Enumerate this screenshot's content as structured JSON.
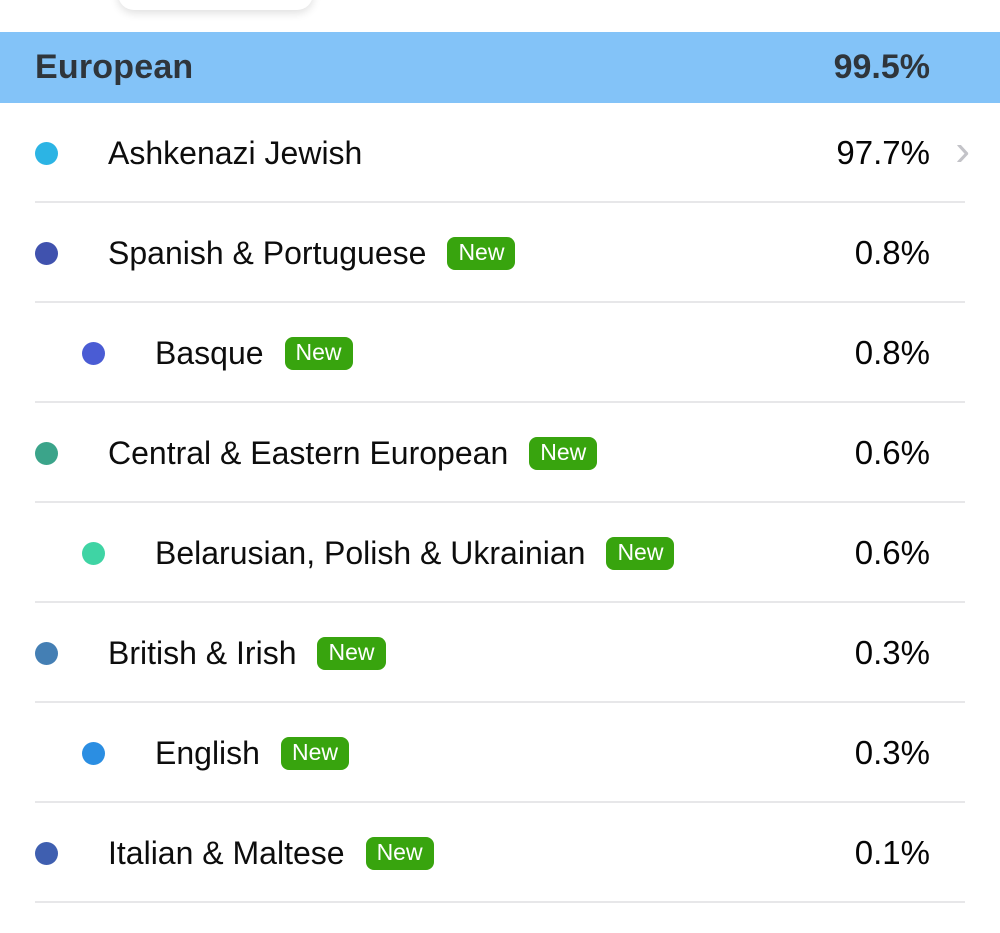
{
  "header": {
    "label": "European",
    "value": "99.5%",
    "background": "#83c3f8",
    "text_color": "#2f353b"
  },
  "badge": {
    "label": "New",
    "background": "#38a40e",
    "text_color": "#ffffff"
  },
  "chevron_glyph": "›",
  "separator_color": "#e7e7e9",
  "rows": [
    {
      "label": "Ashkenazi Jewish",
      "value": "97.7%",
      "dot_color": "#2cb4e4",
      "indent": false,
      "new": false,
      "chevron": true
    },
    {
      "label": "Spanish & Portuguese",
      "value": "0.8%",
      "dot_color": "#4052ae",
      "indent": false,
      "new": true,
      "chevron": false
    },
    {
      "label": "Basque",
      "value": "0.8%",
      "dot_color": "#4a5cd4",
      "indent": true,
      "new": true,
      "chevron": false
    },
    {
      "label": "Central & Eastern European",
      "value": "0.6%",
      "dot_color": "#3ba48a",
      "indent": false,
      "new": true,
      "chevron": false
    },
    {
      "label": "Belarusian, Polish & Ukrainian",
      "value": "0.6%",
      "dot_color": "#3fd4a4",
      "indent": true,
      "new": true,
      "chevron": false
    },
    {
      "label": "British & Irish",
      "value": "0.3%",
      "dot_color": "#447fb4",
      "indent": false,
      "new": true,
      "chevron": false
    },
    {
      "label": "English",
      "value": "0.3%",
      "dot_color": "#2b8ee2",
      "indent": true,
      "new": true,
      "chevron": false
    },
    {
      "label": "Italian & Maltese",
      "value": "0.1%",
      "dot_color": "#3f5fb0",
      "indent": false,
      "new": true,
      "chevron": false
    }
  ]
}
